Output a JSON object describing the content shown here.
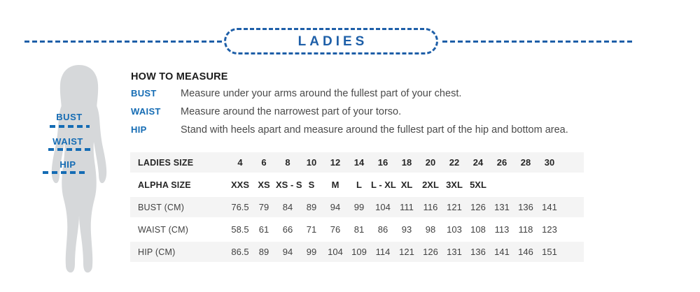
{
  "header": {
    "title": "LADIES"
  },
  "figure": {
    "markers": [
      {
        "label": "BUST"
      },
      {
        "label": "WAIST"
      },
      {
        "label": "HIP"
      }
    ]
  },
  "how_to_measure": {
    "title": "HOW TO MEASURE",
    "items": [
      {
        "label": "BUST",
        "text": "Measure under your arms around the fullest part of your chest."
      },
      {
        "label": "WAIST",
        "text": "Measure around the narrowest part of your torso."
      },
      {
        "label": "HIP",
        "text": "Stand with heels apart and measure around the fullest part of the hip and bottom area."
      }
    ]
  },
  "size_table": {
    "rows": [
      {
        "label": "LADIES SIZE",
        "bold": true,
        "values": [
          "4",
          "6",
          "8",
          "10",
          "12",
          "14",
          "16",
          "18",
          "20",
          "22",
          "24",
          "26",
          "28",
          "30"
        ]
      },
      {
        "label": "ALPHA SIZE",
        "bold": true,
        "values": [
          "XXS",
          "XS",
          "XS - S",
          "S",
          "M",
          "L",
          "L - XL",
          "XL",
          "2XL",
          "3XL",
          "5XL",
          "",
          "",
          ""
        ]
      },
      {
        "label": "BUST (CM)",
        "bold": false,
        "values": [
          "76.5",
          "79",
          "84",
          "89",
          "94",
          "99",
          "104",
          "111",
          "116",
          "121",
          "126",
          "131",
          "136",
          "141"
        ]
      },
      {
        "label": "WAIST (CM)",
        "bold": false,
        "values": [
          "58.5",
          "61",
          "66",
          "71",
          "76",
          "81",
          "86",
          "93",
          "98",
          "103",
          "108",
          "113",
          "118",
          "123"
        ]
      },
      {
        "label": "HIP (CM)",
        "bold": false,
        "values": [
          "86.5",
          "89",
          "94",
          "99",
          "104",
          "109",
          "114",
          "121",
          "126",
          "131",
          "136",
          "141",
          "146",
          "151"
        ]
      }
    ]
  },
  "colors": {
    "accent_blue": "#1e5fa8",
    "label_blue": "#156cb4",
    "row_alt_bg": "#f4f4f4",
    "silhouette_gray": "#d6d8da",
    "heading_text": "#1c1c1c",
    "body_text": "#4a4a4a",
    "table_text": "#414141"
  }
}
